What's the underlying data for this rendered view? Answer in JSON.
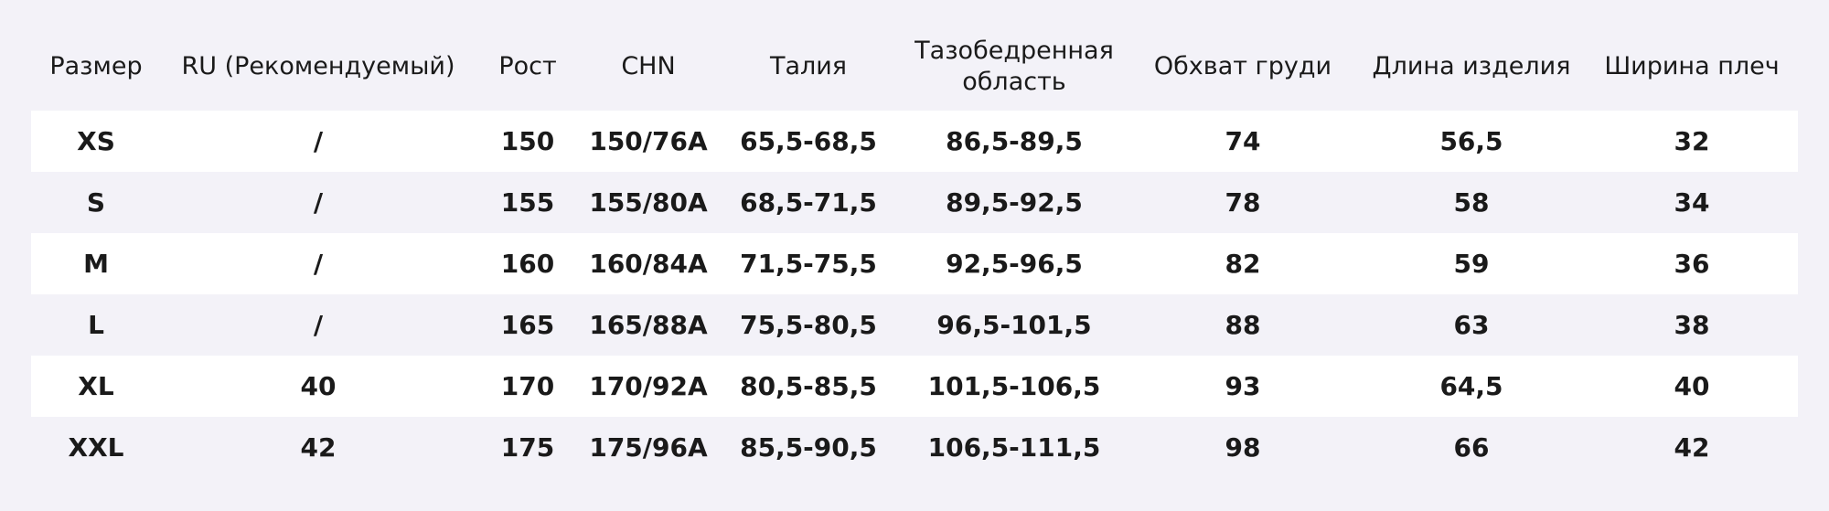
{
  "table": {
    "header": [
      "Размер",
      "RU (Рекомендуемый)",
      "Рост",
      "CHN",
      "Талия",
      "Тазобедренная область",
      "Обхват груди",
      "Длина изделия",
      "Ширина плеч"
    ],
    "rows": [
      [
        "XS",
        "/",
        "150",
        "150/76A",
        "65,5-68,5",
        "86,5-89,5",
        "74",
        "56,5",
        "32"
      ],
      [
        "S",
        "/",
        "155",
        "155/80A",
        "68,5-71,5",
        "89,5-92,5",
        "78",
        "58",
        "34"
      ],
      [
        "M",
        "/",
        "160",
        "160/84A",
        "71,5-75,5",
        "92,5-96,5",
        "82",
        "59",
        "36"
      ],
      [
        "L",
        "/",
        "165",
        "165/88A",
        "75,5-80,5",
        "96,5-101,5",
        "88",
        "63",
        "38"
      ],
      [
        "XL",
        "40",
        "170",
        "170/92A",
        "80,5-85,5",
        "101,5-106,5",
        "93",
        "64,5",
        "40"
      ],
      [
        "XXL",
        "42",
        "175",
        "175/96A",
        "85,5-90,5",
        "106,5-111,5",
        "98",
        "66",
        "42"
      ]
    ]
  }
}
